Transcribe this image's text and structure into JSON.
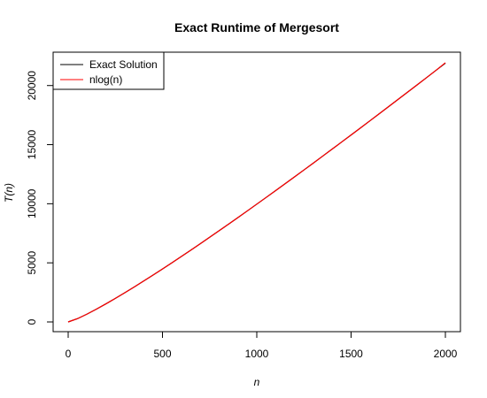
{
  "chart_data": {
    "type": "line",
    "title": "Exact Runtime of Mergesort",
    "xlabel": "n",
    "ylabel": "T(n)",
    "xlim": [
      0,
      2000
    ],
    "ylim": [
      0,
      22000
    ],
    "x_ticks": [
      0,
      500,
      1000,
      1500,
      2000
    ],
    "x_tick_labels": [
      "0",
      "500",
      "1000",
      "1500",
      "2000"
    ],
    "y_ticks": [
      0,
      5000,
      10000,
      15000,
      20000
    ],
    "y_tick_labels": [
      "0",
      "5000",
      "10000",
      "15000",
      "20000"
    ],
    "grid": false,
    "legend_position": "top-left",
    "x": [
      0,
      50,
      100,
      150,
      200,
      250,
      300,
      350,
      400,
      450,
      500,
      550,
      600,
      650,
      700,
      750,
      800,
      850,
      900,
      950,
      1000,
      1050,
      1100,
      1150,
      1200,
      1250,
      1300,
      1350,
      1400,
      1450,
      1500,
      1550,
      1600,
      1650,
      1700,
      1750,
      1800,
      1850,
      1900,
      1950,
      2000
    ],
    "series": [
      {
        "name": "Exact Solution",
        "color": "#000000",
        "values": [
          0,
          282,
          664,
          1084,
          1529,
          1992,
          2469,
          2959,
          3458,
          3966,
          4483,
          5008,
          5538,
          6074,
          6615,
          7162,
          7715,
          8272,
          8832,
          9396,
          9966,
          10537,
          11112,
          11690,
          12272,
          12857,
          13444,
          14034,
          14627,
          15222,
          15819,
          16418,
          17020,
          17623,
          18229,
          18836,
          19445,
          20056,
          20669,
          21283,
          21900
        ]
      },
      {
        "name": "nlog(n)",
        "color": "#ff0000",
        "values": [
          0,
          282,
          664,
          1084,
          1529,
          1992,
          2469,
          2958,
          3458,
          3966,
          4483,
          5007,
          5538,
          6074,
          6615,
          7162,
          7715,
          8271,
          8832,
          9396,
          9966,
          10537,
          11112,
          11690,
          12272,
          12857,
          13444,
          14034,
          14627,
          15222,
          15819,
          16418,
          17020,
          17623,
          18229,
          18836,
          19445,
          20056,
          20669,
          21283,
          21932
        ]
      }
    ]
  }
}
